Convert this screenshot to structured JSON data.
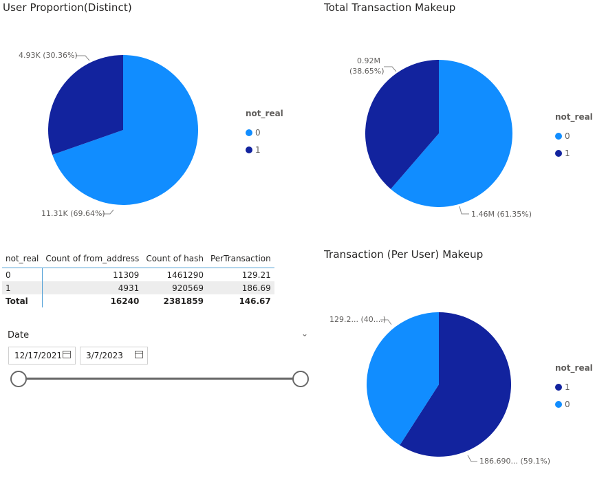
{
  "charts": {
    "user_proportion": {
      "title": "User Proportion(Distinct)",
      "legend_title": "not_real",
      "legend": [
        "0",
        "1"
      ],
      "labels": [
        "11.31K (69.64%)",
        "4.93K (30.36%)"
      ]
    },
    "total_transaction": {
      "title": "Total Transaction Makeup",
      "legend_title": "not_real",
      "legend": [
        "0",
        "1"
      ],
      "labels": [
        "1.46M (61.35%)",
        "0.92M",
        "(38.65%)"
      ]
    },
    "per_user": {
      "title": "Transaction (Per User) Makeup",
      "legend_title": "not_real",
      "legend": [
        "1",
        "0"
      ],
      "labels": [
        "186.690... (59.1%)",
        "129.2... (40....)"
      ]
    }
  },
  "colors": {
    "series_0": "#118DFF",
    "series_1": "#12239E"
  },
  "chart_data": [
    {
      "type": "pie",
      "title": "User Proportion(Distinct)",
      "legend_title": "not_real",
      "categories": [
        "0",
        "1"
      ],
      "values": [
        11309,
        4931
      ],
      "percent": [
        69.64,
        30.36
      ]
    },
    {
      "type": "pie",
      "title": "Total Transaction Makeup",
      "legend_title": "not_real",
      "categories": [
        "0",
        "1"
      ],
      "values": [
        1461290,
        920569
      ],
      "percent": [
        61.35,
        38.65
      ]
    },
    {
      "type": "pie",
      "title": "Transaction (Per User) Makeup",
      "legend_title": "not_real",
      "categories": [
        "1",
        "0"
      ],
      "values": [
        186.69,
        129.21
      ],
      "percent": [
        59.1,
        40.9
      ]
    }
  ],
  "matrix": {
    "headers": [
      "not_real",
      "Count of from_address",
      "Count of hash",
      "PerTransaction"
    ],
    "rows": [
      [
        "0",
        "11309",
        "1461290",
        "129.21"
      ],
      [
        "1",
        "4931",
        "920569",
        "186.69"
      ]
    ],
    "total": [
      "Total",
      "16240",
      "2381859",
      "146.67"
    ]
  },
  "slicer": {
    "title": "Date",
    "start": "12/17/2021",
    "end": "3/7/2023",
    "range_fraction": [
      0,
      1
    ]
  }
}
